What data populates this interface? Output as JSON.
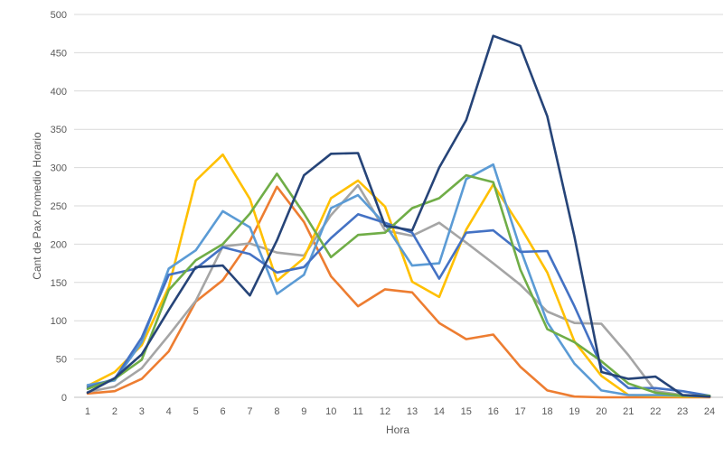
{
  "chart_data": {
    "type": "line",
    "title": "",
    "xlabel": "Hora",
    "ylabel": "Cant  de Pax Promedio Horario",
    "categories": [
      "1",
      "2",
      "3",
      "4",
      "5",
      "6",
      "7",
      "8",
      "9",
      "10",
      "11",
      "12",
      "13",
      "14",
      "15",
      "16",
      "17",
      "18",
      "19",
      "20",
      "21",
      "22",
      "23",
      "24"
    ],
    "ylim": [
      0,
      500
    ],
    "yticks": [
      0,
      50,
      100,
      150,
      200,
      250,
      300,
      350,
      400,
      450,
      500
    ],
    "grid": "horizontal",
    "legend": "none",
    "series": [
      {
        "color": "#ED7D31",
        "values": [
          5,
          8,
          24,
          60,
          125,
          153,
          204,
          275,
          229,
          158,
          119,
          141,
          137,
          97,
          76,
          82,
          40,
          9,
          1,
          0,
          0,
          0,
          0,
          0
        ]
      },
      {
        "color": "#A5A5A5",
        "values": [
          7,
          14,
          38,
          81,
          126,
          197,
          201,
          189,
          185,
          238,
          277,
          218,
          211,
          228,
          202,
          175,
          147,
          112,
          97,
          96,
          55,
          8,
          3,
          2
        ]
      },
      {
        "color": "#FFC000",
        "values": [
          15,
          33,
          68,
          144,
          283,
          317,
          259,
          152,
          182,
          260,
          283,
          249,
          151,
          131,
          219,
          278,
          223,
          163,
          73,
          28,
          3,
          2,
          1,
          1
        ]
      },
      {
        "color": "#5B9BD5",
        "values": [
          16,
          22,
          72,
          168,
          192,
          243,
          222,
          135,
          160,
          247,
          264,
          226,
          172,
          175,
          285,
          304,
          194,
          98,
          44,
          9,
          3,
          3,
          2,
          1
        ]
      },
      {
        "color": "#4472C4",
        "values": [
          13,
          24,
          78,
          160,
          168,
          196,
          187,
          163,
          170,
          208,
          239,
          228,
          215,
          155,
          215,
          218,
          190,
          191,
          119,
          41,
          12,
          12,
          8,
          2
        ]
      },
      {
        "color": "#70AD47",
        "values": [
          11,
          24,
          49,
          140,
          179,
          200,
          240,
          292,
          240,
          183,
          212,
          215,
          247,
          260,
          290,
          281,
          167,
          89,
          72,
          47,
          18,
          6,
          2,
          2
        ]
      },
      {
        "color": "#264478",
        "values": [
          6,
          25,
          56,
          114,
          170,
          172,
          133,
          205,
          290,
          318,
          319,
          224,
          218,
          300,
          362,
          472,
          459,
          367,
          210,
          33,
          24,
          27,
          3,
          1
        ]
      }
    ]
  }
}
